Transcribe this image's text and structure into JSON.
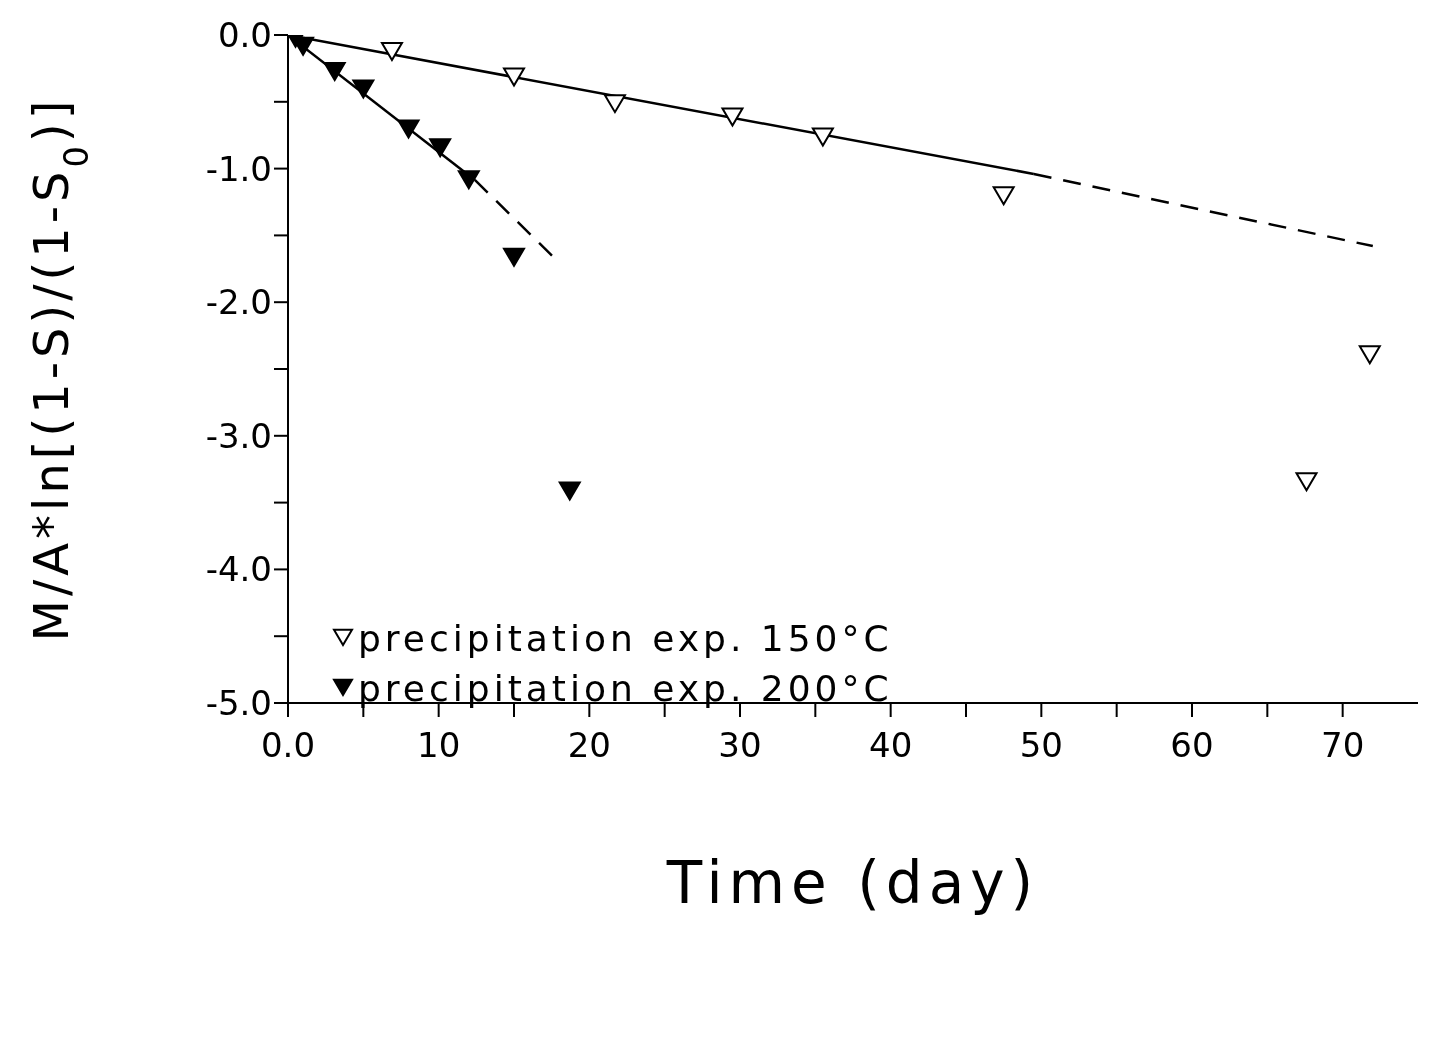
{
  "chart_data": {
    "type": "scatter",
    "xlabel": "Time (day)",
    "ylabel": "M/A*ln[(1-S)/(1-S$_{0}$)]",
    "xlim": [
      0,
      75
    ],
    "ylim": [
      -5,
      0
    ],
    "xticks": [
      {
        "value": 0,
        "label": "0.0"
      },
      {
        "value": 5,
        "label": null
      },
      10,
      {
        "value": 15,
        "label": null
      },
      20,
      {
        "value": 25,
        "label": null
      },
      30,
      {
        "value": 35,
        "label": null
      },
      40,
      {
        "value": 45,
        "label": null
      },
      50,
      {
        "value": 55,
        "label": null
      },
      60,
      {
        "value": 65,
        "label": null
      },
      70
    ],
    "yticks": [
      {
        "value": -5,
        "label": "-5.0"
      },
      {
        "value": -4.5,
        "label": null
      },
      {
        "value": -4,
        "label": "-4.0"
      },
      {
        "value": -3.5,
        "label": null
      },
      {
        "value": -3,
        "label": "-3.0"
      },
      {
        "value": -2.5,
        "label": null
      },
      {
        "value": -2,
        "label": "-2.0"
      },
      {
        "value": -1.5,
        "label": null
      },
      {
        "value": -1,
        "label": "-1.0"
      },
      {
        "value": -0.5,
        "label": null
      },
      {
        "value": 0,
        "label": "0.0"
      }
    ],
    "legend": "bottom left",
    "marker": "triangle",
    "series": [
      {
        "name": "precipitation exp. 150°C",
        "color": "#000000",
        "x": [
          6.9,
          15.0,
          21.7,
          29.5,
          35.5,
          47.5,
          67.6,
          71.8
        ],
        "values": [
          -0.12,
          -0.31,
          -0.51,
          -0.61,
          -0.76,
          -1.2,
          -3.34,
          -2.39
        ]
      },
      {
        "name": "precipitation exp. 200°C",
        "color": "#000000",
        "x": [
          0.5,
          1.0,
          3.1,
          5.0,
          8.0,
          10.1,
          12.0,
          15.0,
          18.7
        ],
        "values": [
          -0.02,
          -0.08,
          -0.27,
          -0.4,
          -0.7,
          -0.84,
          -1.08,
          -1.66,
          -3.41
        ]
      },
      {
        "type": "line",
        "color": "#000000",
        "line_style": "solid",
        "marker": "none",
        "x": [
          0,
          49.5
        ],
        "values": [
          0,
          -1.04
        ]
      },
      {
        "type": "line",
        "color": "#000000",
        "line_style": "dashed",
        "marker": "none",
        "x": [
          49.5,
          72
        ],
        "values": [
          -1.04,
          -1.58
        ]
      },
      {
        "type": "line",
        "color": "#000000",
        "line_style": "solid",
        "marker": "none",
        "x": [
          0,
          12.4
        ],
        "values": [
          0,
          -1.085
        ]
      },
      {
        "type": "line",
        "color": "#000000",
        "line_style": "dashed",
        "marker": "none",
        "x": [
          12.4,
          17.6
        ],
        "values": [
          -1.085,
          -1.66
        ]
      }
    ]
  }
}
